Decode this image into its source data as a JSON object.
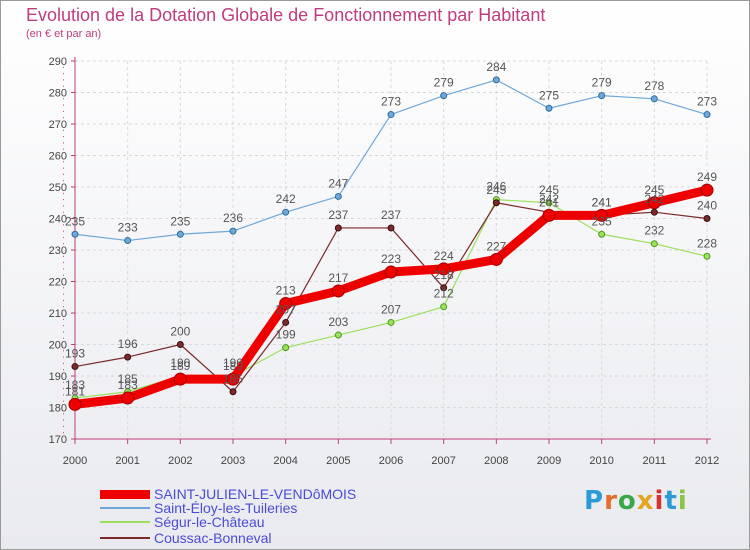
{
  "header": {
    "title": "Evolution de la Dotation Globale de Fonctionnement par Habitant",
    "subtitle": "(en € et par an)"
  },
  "logo": {
    "text": "Proxiti"
  },
  "colors": {
    "title": "#c03c7d",
    "legend_text": "#4b4bd6",
    "axis": "#c03c7d"
  },
  "chart_data": {
    "type": "line",
    "title": "Evolution de la Dotation Globale de Fonctionnement par Habitant",
    "subtitle": "(en € et par an)",
    "xlabel": "",
    "ylabel": "",
    "ylim": [
      170,
      290
    ],
    "yticks": [
      170,
      180,
      190,
      200,
      210,
      220,
      230,
      240,
      250,
      260,
      270,
      280,
      290
    ],
    "grid": true,
    "legend_position": "bottom-left",
    "x": [
      "2000",
      "2001",
      "2002",
      "2003",
      "2004",
      "2005",
      "2006",
      "2007",
      "2008",
      "2009",
      "2010",
      "2011",
      "2012"
    ],
    "series": [
      {
        "name": "SAINT-JULIEN-LE-VENDôMOIS",
        "color": "#ee0000",
        "values": [
          181,
          183,
          189,
          189,
          213,
          217,
          223,
          224,
          227,
          241,
          241,
          245,
          249
        ]
      },
      {
        "name": "Saint-Éloy-les-Tuileries",
        "color": "#6fa8d8",
        "values": [
          235,
          233,
          235,
          236,
          242,
          247,
          273,
          279,
          284,
          275,
          279,
          278,
          273
        ]
      },
      {
        "name": "Ségur-le-Château",
        "color": "#9be05a",
        "values": [
          183,
          185,
          190,
          190,
          199,
          203,
          207,
          212,
          246,
          245,
          235,
          232,
          228
        ]
      },
      {
        "name": "Coussac-Bonneval",
        "color": "#7a2a2a",
        "values": [
          193,
          196,
          200,
          185,
          207,
          237,
          237,
          218,
          245,
          242,
          241,
          242,
          240
        ]
      }
    ]
  }
}
